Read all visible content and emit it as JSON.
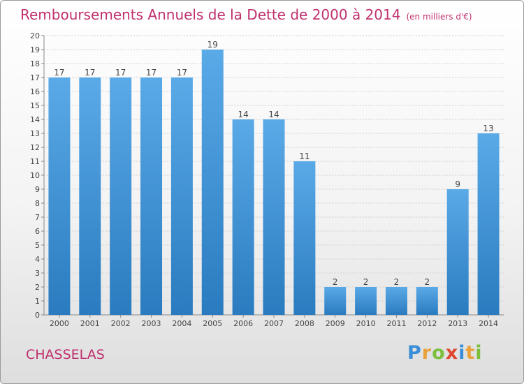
{
  "header": {
    "title": "Remboursements Annuels de la Dette de 2000 à 2014",
    "unit": "(en milliers d'€)"
  },
  "footer": {
    "commune": "CHASSELAS",
    "logo_letters": [
      {
        "ch": "P",
        "color": "#3a8ed8"
      },
      {
        "ch": "r",
        "color": "#e9a23b"
      },
      {
        "ch": "o",
        "color": "#7cbf3d"
      },
      {
        "ch": "x",
        "color": "#e0462f"
      },
      {
        "ch": "i",
        "color": "#3a8ed8"
      },
      {
        "ch": "t",
        "color": "#e9a23b"
      },
      {
        "ch": "i",
        "color": "#7cbf3d"
      }
    ]
  },
  "colors": {
    "title": "#c0306e",
    "bar_top": "#5aaae8",
    "bar_bottom": "#2a7bbf",
    "grid": "#d0d0d0",
    "text": "#444444"
  },
  "chart_data": {
    "type": "bar",
    "categories": [
      "2000",
      "2001",
      "2002",
      "2003",
      "2004",
      "2005",
      "2006",
      "2007",
      "2008",
      "2009",
      "2010",
      "2011",
      "2012",
      "2013",
      "2014"
    ],
    "values": [
      17,
      17,
      17,
      17,
      17,
      19,
      14,
      14,
      11,
      2,
      2,
      2,
      2,
      9,
      13
    ],
    "yticks": [
      0,
      1,
      2,
      3,
      4,
      5,
      6,
      7,
      8,
      9,
      10,
      11,
      12,
      13,
      14,
      15,
      16,
      17,
      18,
      19,
      20
    ],
    "ylim": [
      0,
      20
    ],
    "grid": true
  }
}
